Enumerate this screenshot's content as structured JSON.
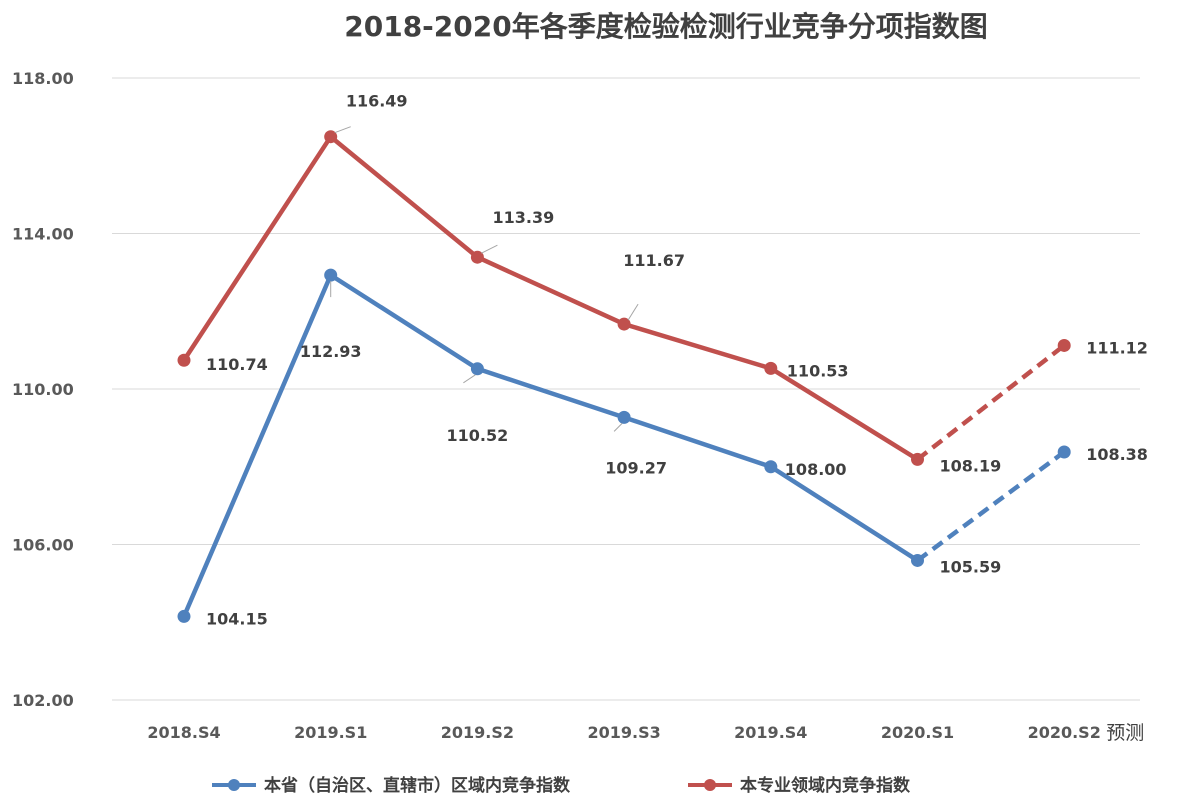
{
  "chart_data": {
    "type": "line",
    "title": "2018-2020年各季度检验检测行业竞争分项指数图",
    "categories": [
      "2018.S4",
      "2019.S1",
      "2019.S2",
      "2019.S3",
      "2019.S4",
      "2020.S1",
      "2020.S2"
    ],
    "x_suffix_label": "预测",
    "ylim": [
      102,
      118
    ],
    "yticks": [
      "102.00",
      "106.00",
      "110.00",
      "114.00",
      "118.00"
    ],
    "grid": true,
    "legend_position": "bottom",
    "series": [
      {
        "name": "本省（自治区、直辖市）区域内竞争指数",
        "color": "#4f81bd",
        "values": [
          104.15,
          112.93,
          110.52,
          109.27,
          108.0,
          105.59,
          108.38
        ],
        "labels": [
          "104.15",
          "112.93",
          "110.52",
          "109.27",
          "108.00",
          "105.59",
          "108.38"
        ],
        "forecast_from_index": 5
      },
      {
        "name": "本专业领域内竞争指数",
        "color": "#c0504d",
        "values": [
          110.74,
          116.49,
          113.39,
          111.67,
          110.53,
          108.19,
          111.12
        ],
        "labels": [
          "110.74",
          "116.49",
          "113.39",
          "111.67",
          "110.53",
          "108.19",
          "111.12"
        ],
        "forecast_from_index": 5
      }
    ]
  }
}
